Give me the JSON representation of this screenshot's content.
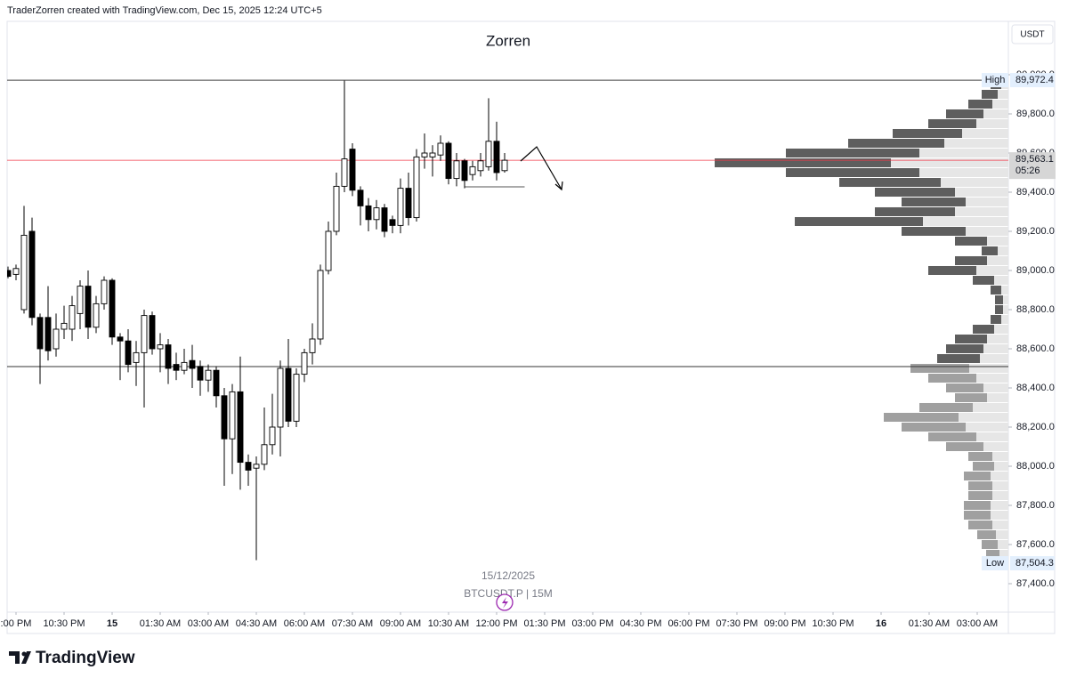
{
  "header": "TraderZorren created with TradingView.com, Dec 15, 2025 12:24 UTC+5",
  "currency": "USDT",
  "date_label": "15/12/2025",
  "symbol_label": "BTCUSDT.P | 15M",
  "logo": "TradingView",
  "chart_data": {
    "type": "candlestick",
    "title": "Zorren",
    "x": [
      0,
      1,
      2,
      3,
      4,
      5,
      6,
      7,
      8,
      9,
      10,
      11,
      12,
      13,
      14,
      15,
      16,
      17,
      18,
      19,
      20,
      21,
      22,
      23,
      24,
      25,
      26,
      27,
      28,
      29,
      30,
      31,
      32,
      33,
      34,
      35,
      36,
      37,
      38,
      39,
      40,
      41,
      42,
      43,
      44,
      45,
      46,
      47,
      48,
      49,
      50,
      51,
      52,
      53,
      54,
      55,
      56,
      57,
      58,
      59,
      60,
      61,
      62
    ],
    "open": [
      89000,
      88980,
      88800,
      89200,
      88760,
      88760,
      88600,
      88700,
      88700,
      88780,
      88920,
      88710,
      88830,
      88950,
      88660,
      88640,
      88530,
      88580,
      88770,
      88600,
      88620,
      88520,
      88490,
      88540,
      88510,
      88440,
      88490,
      88360,
      88140,
      88380,
      88020,
      87990,
      88010,
      88110,
      88200,
      88500,
      88230,
      88470,
      88580,
      88650,
      89000,
      89200,
      89430,
      89620,
      89410,
      89330,
      89260,
      89320,
      89260,
      89230,
      89420,
      89270,
      89580,
      89580,
      89590,
      89650,
      89470,
      89560,
      89490,
      89510,
      89530,
      89660,
      89510
    ],
    "high": [
      89020,
      89030,
      89330,
      89270,
      88780,
      88920,
      88780,
      88820,
      88870,
      88950,
      89000,
      88870,
      88970,
      88960,
      88680,
      88700,
      88640,
      88800,
      88790,
      88680,
      88650,
      88580,
      88600,
      88620,
      88540,
      88520,
      88510,
      88400,
      88420,
      88560,
      88060,
      88050,
      88300,
      88370,
      88540,
      88650,
      88500,
      88600,
      88730,
      89030,
      89250,
      89500,
      89970,
      89650,
      89430,
      89370,
      89360,
      89340,
      89280,
      89470,
      89500,
      89620,
      89700,
      89640,
      89690,
      89660,
      89600,
      89570,
      89560,
      89600,
      89880,
      89760,
      89600
    ],
    "low": [
      88960,
      88950,
      88780,
      88720,
      88420,
      88540,
      88560,
      88650,
      88640,
      88700,
      88650,
      88680,
      88800,
      88620,
      88440,
      88480,
      88410,
      88300,
      88570,
      88480,
      88420,
      88440,
      88470,
      88400,
      88360,
      88380,
      88300,
      87900,
      87960,
      87880,
      87900,
      87520,
      87980,
      88060,
      88050,
      88200,
      88200,
      88430,
      88520,
      88620,
      88980,
      89180,
      89400,
      89380,
      89230,
      89200,
      89210,
      89170,
      89190,
      89190,
      89230,
      89250,
      89520,
      89480,
      89560,
      89440,
      89430,
      89420,
      89460,
      89480,
      89510,
      89460,
      89500
    ],
    "close": [
      88970,
      89010,
      89180,
      88760,
      88600,
      88590,
      88700,
      88730,
      88820,
      88920,
      88710,
      88830,
      88950,
      88660,
      88640,
      88520,
      88580,
      88770,
      88600,
      88620,
      88500,
      88490,
      88530,
      88500,
      88440,
      88490,
      88360,
      88140,
      88380,
      88020,
      87980,
      88010,
      88110,
      88200,
      88500,
      88230,
      88470,
      88580,
      88650,
      89000,
      89200,
      89430,
      89570,
      89410,
      89330,
      89260,
      89320,
      89200,
      89230,
      89420,
      89270,
      89580,
      89600,
      89600,
      89650,
      89470,
      89560,
      89460,
      89530,
      89560,
      89660,
      89500,
      89563.1
    ],
    "up_color": "#ffffff",
    "down_color": "#000000",
    "wick_color": "#000000",
    "xlim": [
      -0.11,
      124.89
    ],
    "ylim": [
      87254.5,
      90272.7
    ],
    "xticks": [
      {
        "value": 1,
        "label": ":00 PM"
      },
      {
        "value": 7,
        "label": "10:30 PM"
      },
      {
        "value": 13,
        "label": "15"
      },
      {
        "value": 19,
        "label": "01:30 AM"
      },
      {
        "value": 25,
        "label": "03:00 AM"
      },
      {
        "value": 31,
        "label": "04:30 AM"
      },
      {
        "value": 37,
        "label": "06:00 AM"
      },
      {
        "value": 43,
        "label": "07:30 AM"
      },
      {
        "value": 49,
        "label": "09:00 AM"
      },
      {
        "value": 55,
        "label": "10:30 AM"
      },
      {
        "value": 61,
        "label": "12:00 PM"
      },
      {
        "value": 67,
        "label": "01:30 PM"
      },
      {
        "value": 73,
        "label": "03:00 PM"
      },
      {
        "value": 79,
        "label": "04:30 PM"
      },
      {
        "value": 85,
        "label": "06:00 PM"
      },
      {
        "value": 91,
        "label": "07:30 PM"
      },
      {
        "value": 97,
        "label": "09:00 PM"
      },
      {
        "value": 103,
        "label": "10:30 PM"
      },
      {
        "value": 109,
        "label": "16"
      },
      {
        "value": 115,
        "label": "01:30 AM"
      },
      {
        "value": 121,
        "label": "03:00 AM"
      }
    ],
    "yticks": [
      {
        "value": 87400,
        "label": "87,400.0"
      },
      {
        "value": 87600,
        "label": "87,600.0"
      },
      {
        "value": 87800,
        "label": "87,800.0"
      },
      {
        "value": 88000,
        "label": "88,000.0"
      },
      {
        "value": 88200,
        "label": "88,200.0"
      },
      {
        "value": 88400,
        "label": "88,400.0"
      },
      {
        "value": 88600,
        "label": "88,600.0"
      },
      {
        "value": 88800,
        "label": "88,800.0"
      },
      {
        "value": 89000,
        "label": "89,000.0"
      },
      {
        "value": 89200,
        "label": "89,200.0"
      },
      {
        "value": 89400,
        "label": "89,400.0"
      },
      {
        "value": 89600,
        "label": "89,600.0"
      },
      {
        "value": 89800,
        "label": "89,800.0"
      },
      {
        "value": 90000,
        "label": "90,000.0"
      }
    ],
    "high_mark": {
      "name": "High",
      "value": 89972.4,
      "label": "89,972.4"
    },
    "low_mark": {
      "name": "Low",
      "value": 87504.3,
      "label": "87,504.3"
    },
    "last_price": {
      "value": 89563.1,
      "label": "89,563.1",
      "countdown": "05:26",
      "color": "#f23645"
    },
    "levels": [
      88509,
      89427
    ],
    "volume_profile": {
      "prices": [
        87550,
        87600,
        87650,
        87700,
        87750,
        87800,
        87850,
        87900,
        87950,
        88000,
        88050,
        88100,
        88150,
        88200,
        88250,
        88300,
        88350,
        88400,
        88450,
        88500,
        88550,
        88600,
        88650,
        88700,
        88750,
        88800,
        88850,
        88900,
        88950,
        89000,
        89050,
        89100,
        89150,
        89200,
        89250,
        89300,
        89350,
        89400,
        89450,
        89500,
        89550,
        89600,
        89650,
        89700,
        89750,
        89800,
        89850,
        89900,
        89950
      ],
      "light": [
        10,
        12,
        14,
        18,
        20,
        20,
        18,
        18,
        20,
        16,
        18,
        28,
        36,
        48,
        56,
        40,
        24,
        28,
        36,
        44,
        32,
        28,
        24,
        16,
        8,
        6,
        6,
        8,
        16,
        36,
        24,
        12,
        24,
        48,
        96,
        60,
        48,
        60,
        76,
        100,
        132,
        100,
        72,
        52,
        36,
        28,
        18,
        12,
        8
      ],
      "dark": [
        15,
        18,
        21,
        27,
        30,
        30,
        27,
        27,
        30,
        24,
        27,
        42,
        54,
        72,
        84,
        60,
        36,
        42,
        54,
        66,
        48,
        42,
        36,
        24,
        12,
        9,
        9,
        12,
        24,
        54,
        36,
        18,
        36,
        72,
        144,
        90,
        72,
        90,
        114,
        150,
        198,
        150,
        108,
        78,
        54,
        42,
        27,
        18,
        12
      ],
      "light_color": "#e6e6e6",
      "dark_color_upper": "#5e5e5e",
      "dark_color_lower": "#a0a0a0"
    }
  }
}
